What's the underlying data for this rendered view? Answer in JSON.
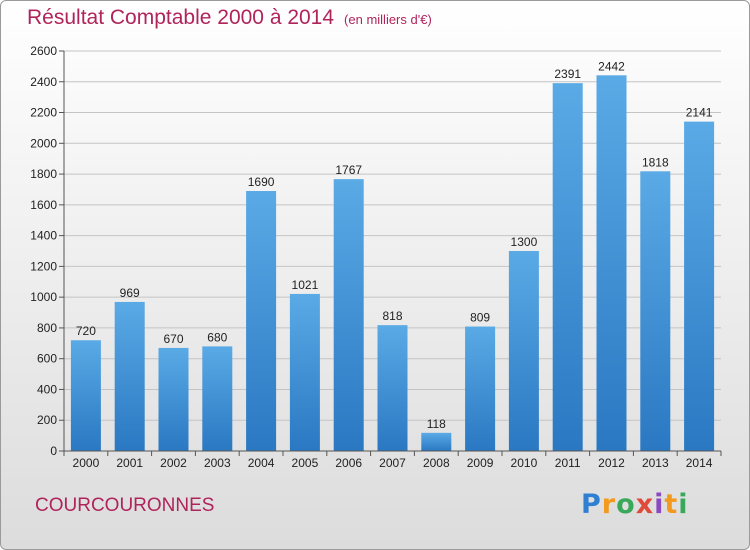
{
  "header": {
    "title": "Résultat Comptable 2000 à 2014",
    "unit": "(en milliers d'€)"
  },
  "footer": {
    "commune": "COURCOURONNES",
    "logo_text": "Proxiti"
  },
  "colors": {
    "title": "#b0245c",
    "bar_light": "#5aaae6",
    "bar_dark": "#2a78c2"
  },
  "chart_data": {
    "type": "bar",
    "title": "Résultat Comptable 2000 à 2014",
    "subtitle": "(en milliers d'€)",
    "xlabel": "",
    "ylabel": "",
    "categories": [
      "2000",
      "2001",
      "2002",
      "2003",
      "2004",
      "2005",
      "2006",
      "2007",
      "2008",
      "2009",
      "2010",
      "2011",
      "2012",
      "2013",
      "2014"
    ],
    "values": [
      720,
      969,
      670,
      680,
      1690,
      1021,
      1767,
      818,
      118,
      809,
      1300,
      2391,
      2442,
      1818,
      2141
    ],
    "ylim": [
      0,
      2600
    ],
    "yticks": [
      0,
      200,
      400,
      600,
      800,
      1000,
      1200,
      1400,
      1600,
      1800,
      2000,
      2200,
      2400,
      2600
    ],
    "grid": true,
    "legend": "none"
  }
}
